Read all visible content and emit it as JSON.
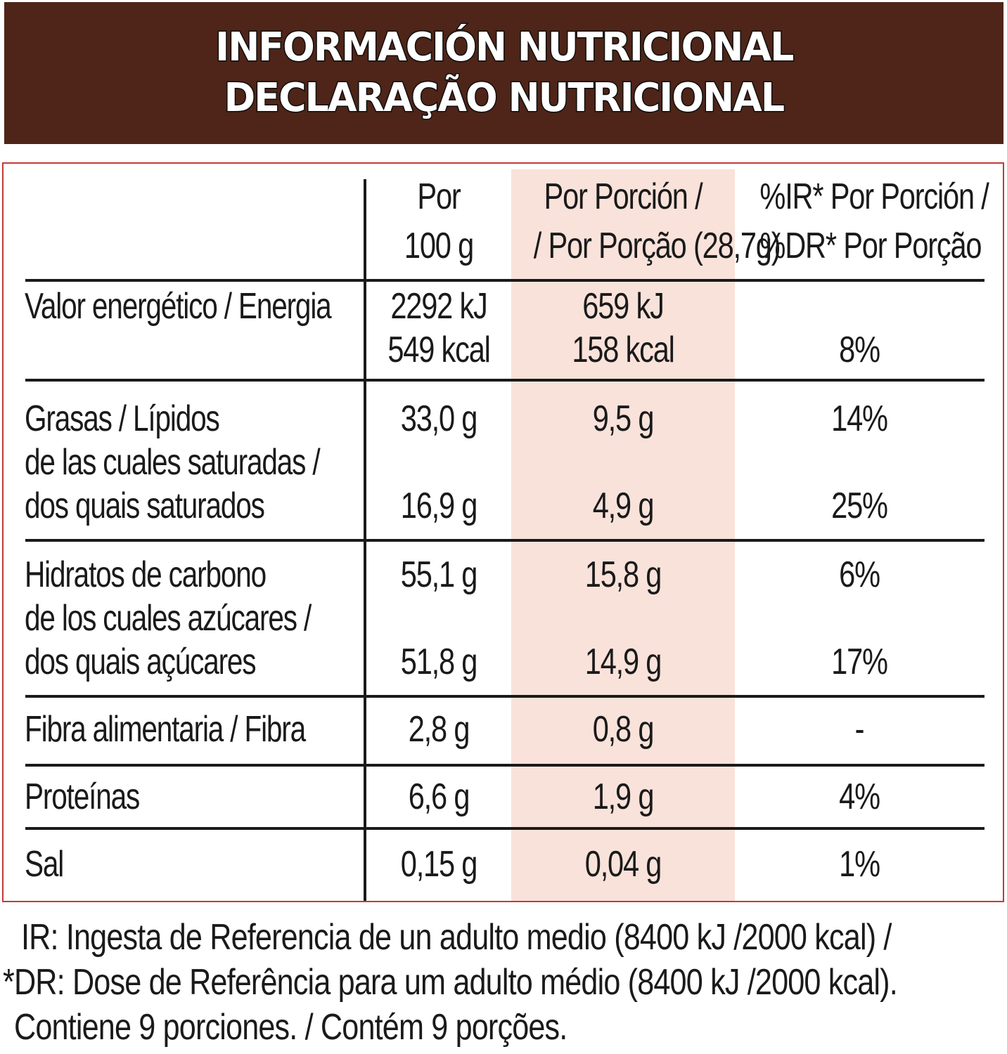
{
  "header": {
    "title_es": "INFORMACIÓN NUTRICIONAL",
    "title_pt": "DECLARAÇÃO NUTRICIONAL"
  },
  "columns": {
    "per100_l1": "Por",
    "per100_l2": "100 g",
    "portion_l1": "Por Porción /",
    "portion_l2": "/ Por Porção (28,7g)",
    "ir_l1": "%IR* Por Porción /",
    "ir_l2": "%DR* Por Porção"
  },
  "rows": {
    "energy": {
      "label": "Valor energético / Energia",
      "per100_kj": "2292 kJ",
      "per100_kcal": "549 kcal",
      "portion_kj": "659 kJ",
      "portion_kcal": "158 kcal",
      "ir": "8%"
    },
    "fat": {
      "label": "Grasas / Lípidos",
      "per100": "33,0 g",
      "portion": "9,5 g",
      "ir": "14%"
    },
    "saturated": {
      "label_l1": "de las cuales saturadas /",
      "label_l2": "dos quais saturados",
      "per100": "16,9 g",
      "portion": "4,9 g",
      "ir": "25%"
    },
    "carbs": {
      "label": "Hidratos de carbono",
      "per100": "55,1 g",
      "portion": "15,8 g",
      "ir": "6%"
    },
    "sugars": {
      "label_l1": "de los cuales azúcares /",
      "label_l2": "dos quais açúcares",
      "per100": "51,8 g",
      "portion": "14,9 g",
      "ir": "17%"
    },
    "fibre": {
      "label": "Fibra alimentaria / Fibra",
      "per100": "2,8 g",
      "portion": "0,8 g",
      "ir": "-"
    },
    "protein": {
      "label": "Proteínas",
      "per100": "6,6 g",
      "portion": "1,9 g",
      "ir": "4%"
    },
    "salt": {
      "label": "Sal",
      "per100": "0,15 g",
      "portion": "0,04 g",
      "ir": "1%"
    }
  },
  "footer": {
    "line1": "IR: Ingesta de Referencia de un adulto medio (8400 kJ /2000 kcal) /",
    "line2": "*DR: Dose de Referência para um adulto médio (8400 kJ /2000 kcal).",
    "line3": "Contiene 9 porciones. / Contém 9 porções."
  }
}
